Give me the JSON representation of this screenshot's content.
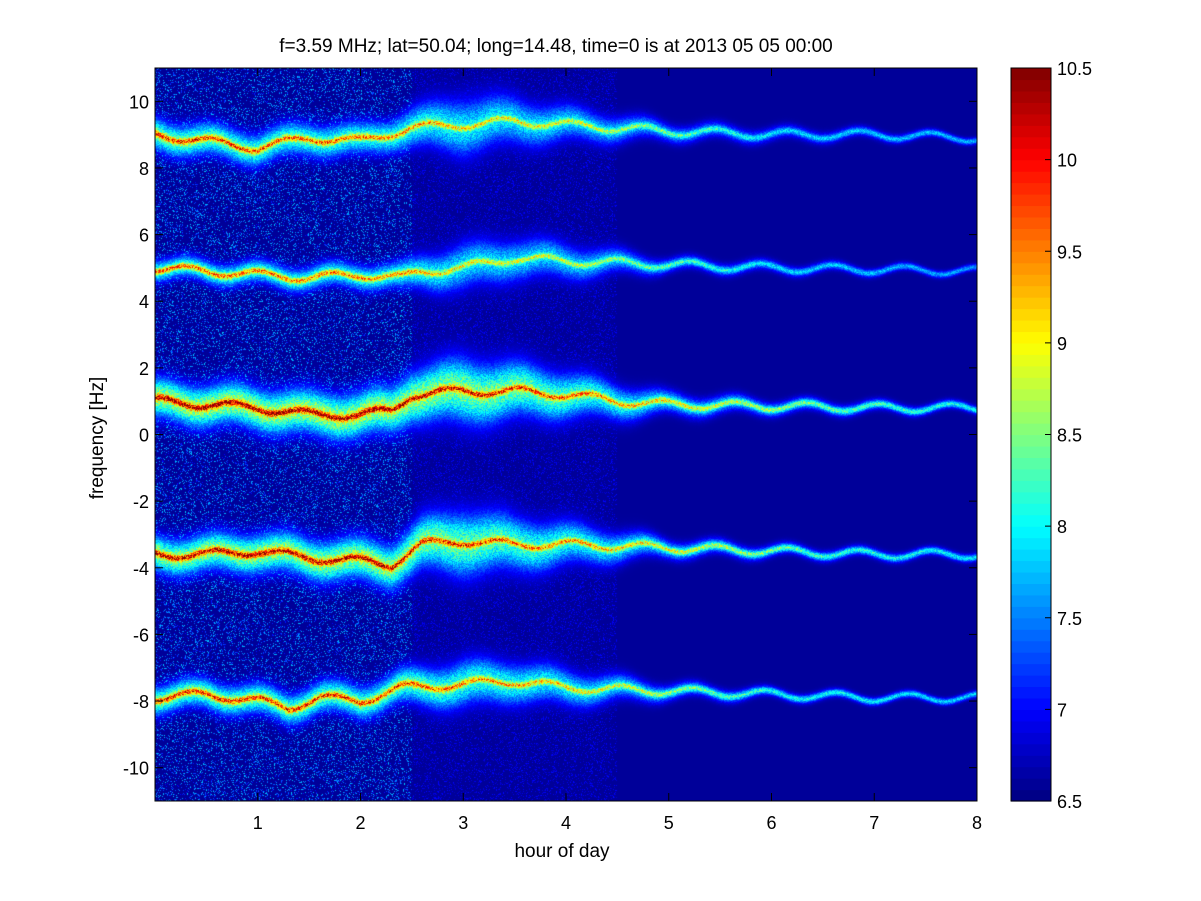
{
  "chart_data": {
    "type": "heatmap",
    "title": "f=3.59 MHz;  lat=50.04; long=14.48, time=0 is at 2013 05 05 00:00",
    "xlabel": "hour of day",
    "ylabel": "frequency [Hz]",
    "xlim": [
      0,
      8
    ],
    "ylim": [
      -11,
      11
    ],
    "x_ticks": [
      1,
      2,
      3,
      4,
      5,
      6,
      7,
      8
    ],
    "x_tick_labels": [
      "1",
      "2",
      "3",
      "4",
      "5",
      "6",
      "7",
      "8"
    ],
    "y_ticks": [
      -10,
      -8,
      -6,
      -4,
      -2,
      0,
      2,
      4,
      6,
      8,
      10
    ],
    "y_tick_labels": [
      "-10",
      "-8",
      "-6",
      "-4",
      "-2",
      "0",
      "2",
      "4",
      "6",
      "8",
      "10"
    ],
    "colorbar": {
      "colormap": "jet",
      "range": [
        6.5,
        10.5
      ],
      "ticks": [
        6.5,
        7,
        7.5,
        8,
        8.5,
        9,
        9.5,
        10,
        10.5
      ],
      "tick_labels": [
        "6.5",
        "7",
        "7.5",
        "8",
        "8.5",
        "9",
        "9.5",
        "10",
        "10.5"
      ]
    },
    "background_value": 6.6,
    "spectral_lines": [
      {
        "center_freq": [
          [
            0,
            9.0
          ],
          [
            1,
            8.6
          ],
          [
            1.5,
            8.9
          ],
          [
            2,
            8.8
          ],
          [
            2.5,
            9.2
          ],
          [
            3,
            9.3
          ],
          [
            3.5,
            9.4
          ],
          [
            4,
            9.3
          ],
          [
            5,
            9.1
          ],
          [
            6,
            9.0
          ],
          [
            7,
            9.0
          ],
          [
            8,
            8.9
          ]
        ],
        "peak_value": [
          [
            0,
            9.9
          ],
          [
            2.5,
            9.4
          ],
          [
            3,
            9.1
          ],
          [
            4,
            8.9
          ],
          [
            5,
            8.4
          ],
          [
            6,
            7.9
          ],
          [
            8,
            7.7
          ]
        ],
        "spread_hz": [
          [
            0,
            0.9
          ],
          [
            2.3,
            0.9
          ],
          [
            3,
            1.6
          ],
          [
            4,
            1.0
          ],
          [
            5,
            0.5
          ],
          [
            8,
            0.2
          ]
        ]
      },
      {
        "center_freq": [
          [
            0,
            5.0
          ],
          [
            1,
            4.8
          ],
          [
            1.5,
            4.7
          ],
          [
            2,
            4.8
          ],
          [
            2.4,
            4.7
          ],
          [
            2.6,
            4.9
          ],
          [
            3,
            5.0
          ],
          [
            3.5,
            5.3
          ],
          [
            4,
            5.2
          ],
          [
            5,
            5.1
          ],
          [
            6,
            5.0
          ],
          [
            7,
            4.95
          ],
          [
            8,
            4.9
          ]
        ],
        "peak_value": [
          [
            0,
            9.6
          ],
          [
            2.3,
            9.4
          ],
          [
            3,
            9.0
          ],
          [
            4,
            8.8
          ],
          [
            5,
            8.3
          ],
          [
            6,
            7.9
          ],
          [
            8,
            7.6
          ]
        ],
        "spread_hz": [
          [
            0,
            0.6
          ],
          [
            2.3,
            0.7
          ],
          [
            3,
            1.3
          ],
          [
            4,
            1.0
          ],
          [
            5,
            0.4
          ],
          [
            8,
            0.2
          ]
        ]
      },
      {
        "center_freq": [
          [
            0,
            1.0
          ],
          [
            0.5,
            0.9
          ],
          [
            1,
            0.8
          ],
          [
            1.5,
            0.6
          ],
          [
            2,
            0.6
          ],
          [
            2.3,
            0.7
          ],
          [
            2.5,
            1.2
          ],
          [
            3,
            1.3
          ],
          [
            3.5,
            1.3
          ],
          [
            4,
            1.2
          ],
          [
            4.5,
            1.0
          ],
          [
            5,
            0.9
          ],
          [
            6,
            0.85
          ],
          [
            7,
            0.8
          ],
          [
            8,
            0.8
          ]
        ],
        "peak_value": [
          [
            0,
            10.4
          ],
          [
            2.2,
            10.4
          ],
          [
            2.6,
            10.2
          ],
          [
            3.5,
            9.9
          ],
          [
            4.5,
            9.3
          ],
          [
            5.5,
            8.8
          ],
          [
            6.5,
            8.4
          ],
          [
            8,
            8.0
          ]
        ],
        "spread_hz": [
          [
            0,
            1.1
          ],
          [
            2.3,
            1.3
          ],
          [
            3,
            1.8
          ],
          [
            4,
            1.3
          ],
          [
            5,
            0.6
          ],
          [
            6,
            0.4
          ],
          [
            8,
            0.25
          ]
        ]
      },
      {
        "center_freq": [
          [
            0,
            -3.6
          ],
          [
            0.5,
            -3.6
          ],
          [
            1,
            -3.5
          ],
          [
            1.5,
            -3.7
          ],
          [
            2,
            -3.8
          ],
          [
            2.3,
            -3.9
          ],
          [
            2.6,
            -3.3
          ],
          [
            3,
            -3.2
          ],
          [
            3.5,
            -3.3
          ],
          [
            4,
            -3.3
          ],
          [
            5,
            -3.4
          ],
          [
            6,
            -3.5
          ],
          [
            7,
            -3.6
          ],
          [
            8,
            -3.6
          ]
        ],
        "peak_value": [
          [
            0,
            10.2
          ],
          [
            2.2,
            10.3
          ],
          [
            2.6,
            10.0
          ],
          [
            3.5,
            9.6
          ],
          [
            4.5,
            9.1
          ],
          [
            5.5,
            8.7
          ],
          [
            6.5,
            8.2
          ],
          [
            8,
            7.9
          ]
        ],
        "spread_hz": [
          [
            0,
            1.0
          ],
          [
            2.3,
            1.2
          ],
          [
            3,
            1.8
          ],
          [
            4,
            1.2
          ],
          [
            5,
            0.5
          ],
          [
            6,
            0.35
          ],
          [
            8,
            0.25
          ]
        ]
      },
      {
        "center_freq": [
          [
            0,
            -7.9
          ],
          [
            0.5,
            -7.8
          ],
          [
            1,
            -8.0
          ],
          [
            1.3,
            -8.2
          ],
          [
            1.6,
            -7.9
          ],
          [
            2,
            -8.0
          ],
          [
            2.4,
            -7.6
          ],
          [
            3,
            -7.5
          ],
          [
            3.5,
            -7.4
          ],
          [
            4,
            -7.6
          ],
          [
            5,
            -7.7
          ],
          [
            6,
            -7.8
          ],
          [
            7,
            -7.9
          ],
          [
            8,
            -7.9
          ]
        ],
        "peak_value": [
          [
            0,
            9.9
          ],
          [
            2.3,
            9.8
          ],
          [
            3,
            9.5
          ],
          [
            4,
            9.1
          ],
          [
            5,
            8.6
          ],
          [
            6,
            8.1
          ],
          [
            8,
            7.8
          ]
        ],
        "spread_hz": [
          [
            0,
            0.8
          ],
          [
            2.3,
            0.9
          ],
          [
            3,
            1.3
          ],
          [
            4,
            1.0
          ],
          [
            5,
            0.45
          ],
          [
            6,
            0.3
          ],
          [
            8,
            0.2
          ]
        ]
      }
    ],
    "broadband_noise": [
      {
        "x_range": [
          0,
          2.5
        ],
        "y_range": [
          -11,
          11
        ],
        "level": 7.4
      },
      {
        "x_range": [
          2.5,
          4.5
        ],
        "y_range": [
          -11,
          11
        ],
        "level": 6.9
      }
    ]
  }
}
